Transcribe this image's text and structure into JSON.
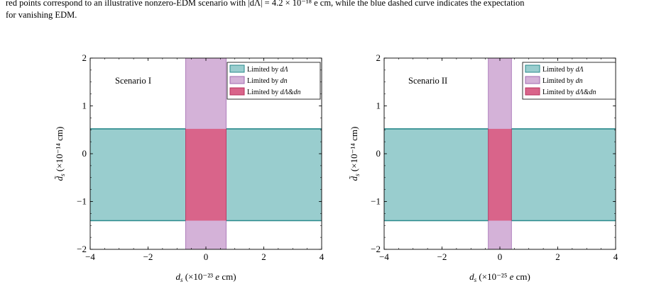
{
  "caption": {
    "line1": "red points correspond to an illustrative nonzero-EDM scenario with |dΛ| = 4.2 × 10⁻¹⁸ e cm, while the blue dashed curve indicates the expectation",
    "line2": "for vanishing EDM."
  },
  "colors": {
    "lambda_fill": "#99cdce",
    "lambda_stroke": "#2a8a8c",
    "n_fill": "#d4b2d8",
    "n_stroke": "#a06ab0",
    "both_fill": "#d9648a",
    "both_stroke": "#b8305c"
  },
  "chart_data": [
    {
      "type": "area",
      "annotation": "Scenario I",
      "xlabel": "d_s (×10⁻²³ e cm)",
      "ylabel": "d̃_s (×10⁻¹⁴ cm)",
      "xlim": [
        -4,
        4
      ],
      "ylim": [
        -2,
        2
      ],
      "xticks": [
        -4,
        -2,
        0,
        2,
        4
      ],
      "yticks": [
        -2,
        -1,
        0,
        1,
        2
      ],
      "xtick_labels": [
        "−4",
        "−2",
        "0",
        "2",
        "4"
      ],
      "ytick_labels": [
        "−2",
        "−1",
        "0",
        "1",
        "2"
      ],
      "legend_position": "top-right",
      "series": [
        {
          "name": "Limited by dΛ",
          "x_range": [
            -4,
            4
          ],
          "y_range": [
            -1.4,
            0.52
          ]
        },
        {
          "name": "Limited by dn",
          "x_range": [
            -0.7,
            0.7
          ],
          "y_range": [
            -2,
            2
          ]
        },
        {
          "name": "Limited by dΛ&dn",
          "x_range": [
            -0.7,
            0.7
          ],
          "y_range": [
            -1.4,
            0.52
          ]
        }
      ]
    },
    {
      "type": "area",
      "annotation": "Scenario II",
      "xlabel": "d_s (×10⁻²⁵ e cm)",
      "ylabel": "d̃_s (×10⁻¹⁴ cm)",
      "xlim": [
        -4,
        4
      ],
      "ylim": [
        -2,
        2
      ],
      "xticks": [
        -4,
        -2,
        0,
        2,
        4
      ],
      "yticks": [
        -2,
        -1,
        0,
        1,
        2
      ],
      "xtick_labels": [
        "−4",
        "−2",
        "0",
        "2",
        "4"
      ],
      "ytick_labels": [
        "−2",
        "−1",
        "0",
        "1",
        "2"
      ],
      "legend_position": "top-right",
      "series": [
        {
          "name": "Limited by dΛ",
          "x_range": [
            -4,
            4
          ],
          "y_range": [
            -1.4,
            0.52
          ]
        },
        {
          "name": "Limited by dn",
          "x_range": [
            -0.4,
            0.4
          ],
          "y_range": [
            -2,
            2
          ]
        },
        {
          "name": "Limited by dΛ&dn",
          "x_range": [
            -0.4,
            0.4
          ],
          "y_range": [
            -1.4,
            0.52
          ]
        }
      ]
    }
  ]
}
